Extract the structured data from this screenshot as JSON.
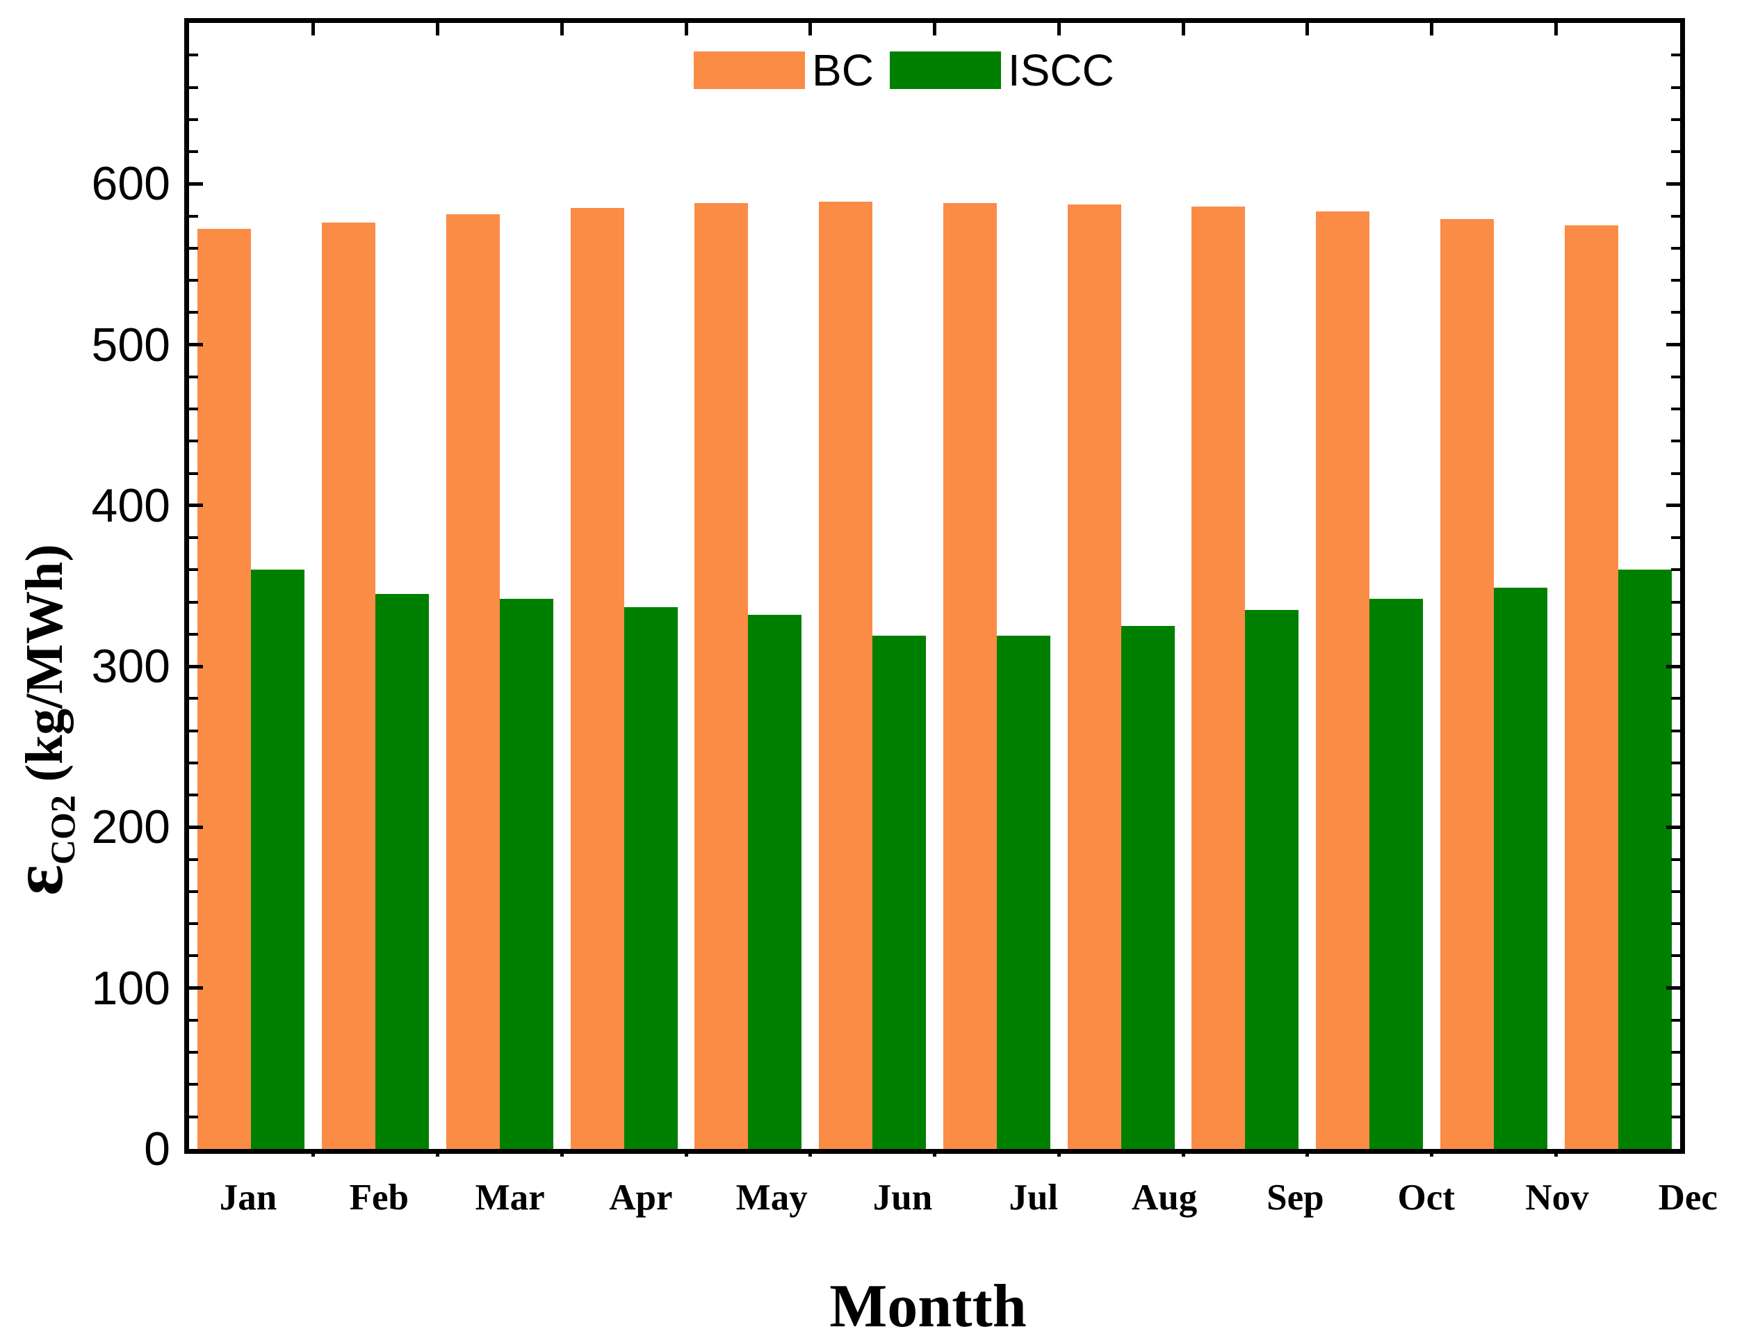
{
  "figure": {
    "background": "#ffffff",
    "x_title": "Montth",
    "y_title": {
      "epsilon": "ε",
      "subscript": "CO2",
      "units": " (kg/MWh)"
    }
  },
  "legend": {
    "position": "top-center",
    "items": [
      {
        "label": "BC",
        "color": "#FA8C46"
      },
      {
        "label": "ISCC",
        "color": "#008000"
      }
    ]
  },
  "chart_data": {
    "type": "bar",
    "title": "",
    "xlabel": "Montth",
    "ylabel": "ε_CO2 (kg/MWh)",
    "categories": [
      "Jan",
      "Feb",
      "Mar",
      "Apr",
      "May",
      "Jun",
      "Jul",
      "Aug",
      "Sep",
      "Oct",
      "Nov",
      "Dec"
    ],
    "series": [
      {
        "name": "BC",
        "color": "#FA8C46",
        "values": [
          572,
          576,
          581,
          585,
          588,
          589,
          588,
          587,
          586,
          583,
          578,
          574
        ]
      },
      {
        "name": "ISCC",
        "color": "#008000",
        "values": [
          360,
          345,
          342,
          337,
          332,
          319,
          319,
          325,
          335,
          342,
          349,
          360
        ]
      }
    ],
    "ylim": [
      0,
      700
    ],
    "ytick_labels": [
      0,
      100,
      200,
      300,
      400,
      500,
      600
    ],
    "ytick_major_step": 100,
    "ytick_minor_step": 20,
    "grid": false,
    "bar_grouping": "paired-touching",
    "legend_position": "top-center"
  }
}
